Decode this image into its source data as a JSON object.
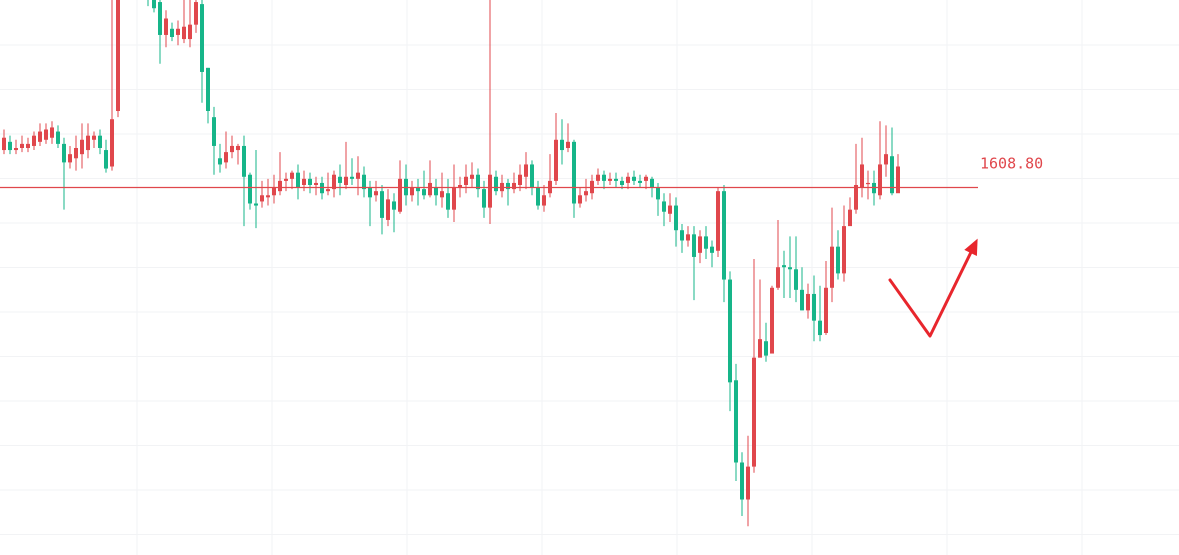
{
  "chart_data": {
    "type": "candlestick",
    "grid": true,
    "colors": {
      "up": "#e0474c",
      "down": "#16b589",
      "level": "#e0474c",
      "arrow": "#e8262d",
      "grid": "#f2f3f5"
    },
    "level": {
      "value": 1608.8,
      "label": "1608.80"
    },
    "y_range": [
      1430,
      1700
    ],
    "candles": [
      [
        1627,
        1633,
        1637,
        1625
      ],
      [
        1631,
        1627,
        1634,
        1625
      ],
      [
        1627,
        1628,
        1632,
        1625
      ],
      [
        1628,
        1630,
        1634,
        1626
      ],
      [
        1628,
        1630,
        1633,
        1626
      ],
      [
        1629,
        1634,
        1636,
        1627
      ],
      [
        1631,
        1636,
        1640,
        1629
      ],
      [
        1632,
        1637,
        1640,
        1630
      ],
      [
        1633,
        1638,
        1641,
        1630
      ],
      [
        1636,
        1630,
        1639,
        1628
      ],
      [
        1630,
        1621,
        1633,
        1598
      ],
      [
        1621,
        1625,
        1629,
        1618
      ],
      [
        1623,
        1628,
        1634,
        1617
      ],
      [
        1625,
        1632,
        1640,
        1618
      ],
      [
        1627,
        1634,
        1640,
        1623
      ],
      [
        1632,
        1634,
        1636,
        1628
      ],
      [
        1634,
        1628,
        1637,
        1625
      ],
      [
        1627,
        1618,
        1632,
        1616
      ],
      [
        1619,
        1642,
        1730,
        1617
      ],
      [
        1646,
        1719,
        1727,
        1643
      ],
      [
        1720,
        1709,
        1725,
        1702
      ],
      [
        1709,
        1712,
        1726,
        1702
      ],
      [
        1712,
        1717,
        1722,
        1710
      ],
      [
        1717,
        1705,
        1719,
        1700
      ],
      [
        1706,
        1701,
        1713,
        1697
      ],
      [
        1703,
        1696,
        1710,
        1694
      ],
      [
        1699,
        1683,
        1701,
        1669
      ],
      [
        1683,
        1691,
        1695,
        1677
      ],
      [
        1686,
        1682,
        1689,
        1680
      ],
      [
        1683,
        1686,
        1690,
        1678
      ],
      [
        1681,
        1687,
        1700,
        1679
      ],
      [
        1681,
        1688,
        1711,
        1677
      ],
      [
        1688,
        1699,
        1700,
        1684
      ],
      [
        1698,
        1665,
        1700,
        1650
      ],
      [
        1667,
        1646,
        1667,
        1640
      ],
      [
        1643,
        1629,
        1648,
        1615
      ],
      [
        1623,
        1620,
        1630,
        1616
      ],
      [
        1621,
        1626,
        1636,
        1618
      ],
      [
        1626,
        1629,
        1634,
        1623
      ],
      [
        1627,
        1629,
        1630,
        1620
      ],
      [
        1629,
        1614,
        1634,
        1590
      ],
      [
        1615,
        1601,
        1616,
        1598
      ],
      [
        1601,
        1600,
        1627,
        1589
      ],
      [
        1602,
        1605,
        1612,
        1599
      ],
      [
        1604,
        1605,
        1613,
        1600
      ],
      [
        1605,
        1609,
        1615,
        1601
      ],
      [
        1607,
        1612,
        1626,
        1605
      ],
      [
        1612,
        1613,
        1616,
        1607
      ],
      [
        1613,
        1616,
        1617,
        1608
      ],
      [
        1616,
        1609,
        1620,
        1603
      ],
      [
        1610,
        1613,
        1617,
        1607
      ],
      [
        1613,
        1610,
        1616,
        1606
      ],
      [
        1610,
        1611,
        1614,
        1605
      ],
      [
        1611,
        1606,
        1614,
        1603
      ],
      [
        1607,
        1608,
        1616,
        1605
      ],
      [
        1608,
        1615,
        1617,
        1604
      ],
      [
        1614,
        1611,
        1620,
        1605
      ],
      [
        1610,
        1614,
        1631,
        1608
      ],
      [
        1614,
        1613,
        1623,
        1610
      ],
      [
        1613,
        1616,
        1624,
        1605
      ],
      [
        1615,
        1608,
        1619,
        1604
      ],
      [
        1609,
        1604,
        1612,
        1590
      ],
      [
        1605,
        1607,
        1612,
        1602
      ],
      [
        1607,
        1594,
        1610,
        1586
      ],
      [
        1593,
        1603,
        1608,
        1590
      ],
      [
        1602,
        1598,
        1606,
        1587
      ],
      [
        1597,
        1613,
        1622,
        1596
      ],
      [
        1613,
        1605,
        1620,
        1600
      ],
      [
        1605,
        1609,
        1612,
        1602
      ],
      [
        1609,
        1607,
        1613,
        1600
      ],
      [
        1608,
        1605,
        1617,
        1603
      ],
      [
        1605,
        1611,
        1622,
        1604
      ],
      [
        1609,
        1605,
        1613,
        1600
      ],
      [
        1604,
        1607,
        1616,
        1599
      ],
      [
        1606,
        1598,
        1613,
        1594
      ],
      [
        1598,
        1609,
        1620,
        1592
      ],
      [
        1609,
        1610,
        1614,
        1604
      ],
      [
        1610,
        1614,
        1620,
        1606
      ],
      [
        1613,
        1615,
        1621,
        1609
      ],
      [
        1615,
        1608,
        1618,
        1604
      ],
      [
        1608,
        1599,
        1612,
        1594
      ],
      [
        1599,
        1615,
        1700,
        1591
      ],
      [
        1614,
        1607,
        1617,
        1605
      ],
      [
        1607,
        1611,
        1615,
        1604
      ],
      [
        1611,
        1608,
        1613,
        1600
      ],
      [
        1608,
        1611,
        1616,
        1606
      ],
      [
        1610,
        1615,
        1620,
        1607
      ],
      [
        1614,
        1620,
        1626,
        1608
      ],
      [
        1620,
        1609,
        1622,
        1605
      ],
      [
        1609,
        1600,
        1612,
        1598
      ],
      [
        1600,
        1605,
        1610,
        1597
      ],
      [
        1606,
        1612,
        1625,
        1604
      ],
      [
        1612,
        1632,
        1645,
        1610
      ],
      [
        1632,
        1627,
        1642,
        1620
      ],
      [
        1628,
        1631,
        1640,
        1626
      ],
      [
        1631,
        1601,
        1632,
        1594
      ],
      [
        1601,
        1605,
        1609,
        1599
      ],
      [
        1605,
        1607,
        1613,
        1602
      ],
      [
        1606,
        1612,
        1615,
        1603
      ],
      [
        1612,
        1615,
        1618,
        1610
      ],
      [
        1615,
        1612,
        1617,
        1608
      ],
      [
        1612,
        1613,
        1616,
        1610
      ],
      [
        1613,
        1612,
        1616,
        1609
      ],
      [
        1612,
        1610,
        1614,
        1608
      ],
      [
        1611,
        1614,
        1616,
        1608
      ],
      [
        1614,
        1612,
        1617,
        1610
      ],
      [
        1612,
        1611,
        1615,
        1609
      ],
      [
        1612,
        1614,
        1615,
        1608
      ],
      [
        1613,
        1609,
        1614,
        1604
      ],
      [
        1609,
        1603,
        1611,
        1595
      ],
      [
        1602,
        1597,
        1606,
        1590
      ],
      [
        1596,
        1600,
        1606,
        1592
      ],
      [
        1600,
        1588,
        1604,
        1580
      ],
      [
        1588,
        1583,
        1591,
        1577
      ],
      [
        1583,
        1586,
        1590,
        1580
      ],
      [
        1586,
        1575,
        1590,
        1554
      ],
      [
        1577,
        1585,
        1588,
        1572
      ],
      [
        1585,
        1579,
        1590,
        1574
      ],
      [
        1580,
        1577,
        1583,
        1570
      ],
      [
        1578,
        1607,
        1609,
        1575
      ],
      [
        1607,
        1564,
        1610,
        1553
      ],
      [
        1564,
        1514,
        1568,
        1500
      ],
      [
        1515,
        1475,
        1523,
        1466
      ],
      [
        1475,
        1457,
        1480,
        1449
      ],
      [
        1457,
        1473,
        1488,
        1444
      ],
      [
        1473,
        1526,
        1574,
        1470
      ],
      [
        1526,
        1535,
        1564,
        1527
      ],
      [
        1534,
        1527,
        1543,
        1524
      ],
      [
        1528,
        1560,
        1561,
        1529
      ],
      [
        1560,
        1570,
        1593,
        1559
      ],
      [
        1571,
        1570,
        1578,
        1555
      ],
      [
        1570,
        1569,
        1585,
        1555
      ],
      [
        1569,
        1559,
        1585,
        1553
      ],
      [
        1559,
        1549,
        1570,
        1549
      ],
      [
        1549,
        1557,
        1562,
        1545
      ],
      [
        1557,
        1544,
        1566,
        1534
      ],
      [
        1544,
        1537,
        1561,
        1534
      ],
      [
        1538,
        1560,
        1573,
        1537
      ],
      [
        1560,
        1580,
        1599,
        1553
      ],
      [
        1580,
        1567,
        1588,
        1564
      ],
      [
        1567,
        1590,
        1600,
        1563
      ],
      [
        1590,
        1598,
        1604,
        1593
      ],
      [
        1598,
        1610,
        1630,
        1596
      ],
      [
        1609,
        1620,
        1633,
        1604
      ],
      [
        1611,
        1611,
        1617,
        1603
      ],
      [
        1611,
        1606,
        1617,
        1600
      ],
      [
        1605,
        1620,
        1641,
        1603
      ],
      [
        1620,
        1625,
        1639,
        1614
      ],
      [
        1624,
        1606,
        1638,
        1605
      ],
      [
        1606,
        1619,
        1625,
        1607
      ]
    ],
    "arrow_path": [
      [
        890,
        280
      ],
      [
        930,
        336
      ],
      [
        975,
        244
      ]
    ]
  }
}
